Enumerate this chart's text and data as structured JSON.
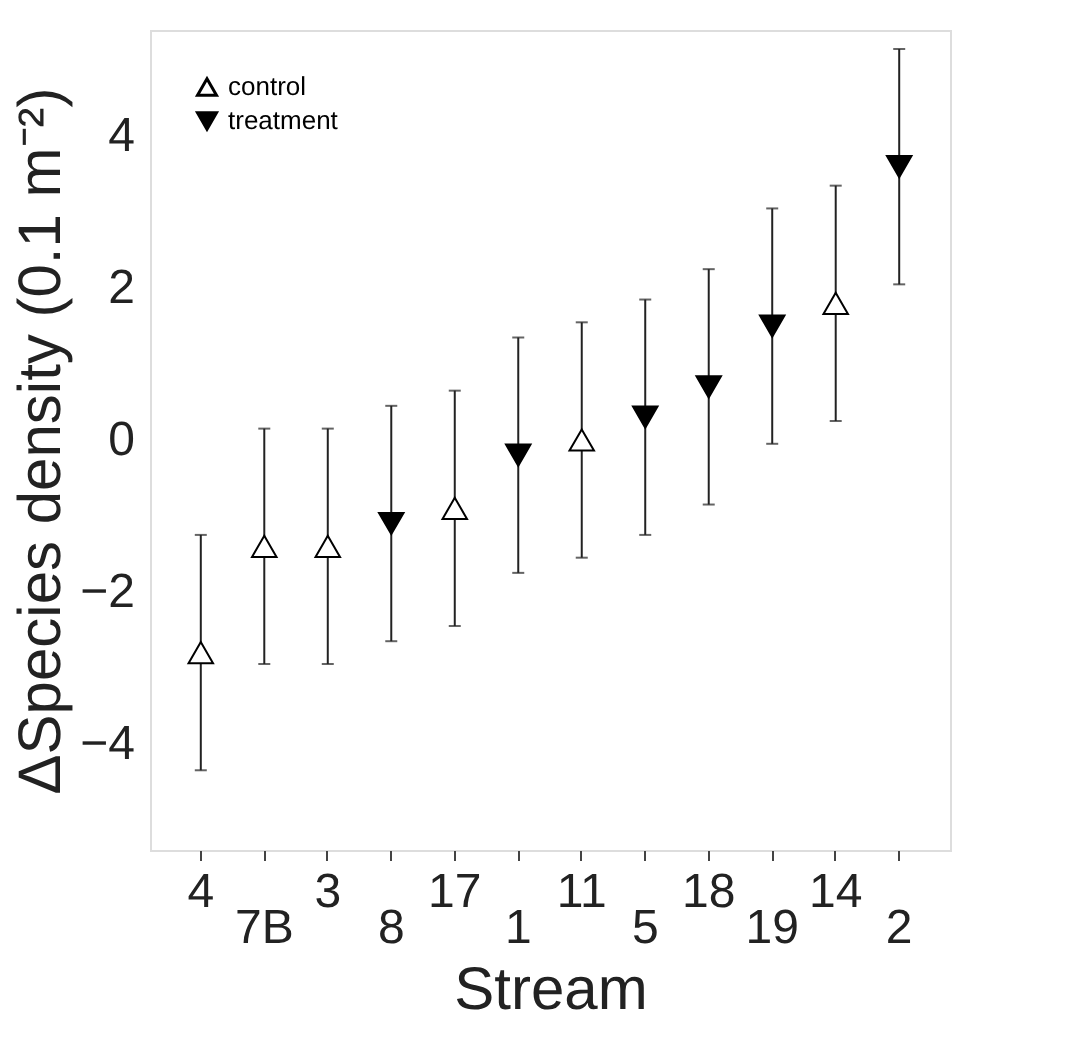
{
  "chart_data": {
    "type": "scatter",
    "xlabel": "Stream",
    "ylabel": "ΔSpecies density (0.1 m⁻²)",
    "categories": [
      "4",
      "7B",
      "3",
      "8",
      "17",
      "1",
      "11",
      "5",
      "18",
      "19",
      "14",
      "2"
    ],
    "series": [
      {
        "name": "control",
        "color": "#ffffff",
        "marker": "triangle",
        "values": [
          -2.8,
          -1.4,
          -1.4,
          null,
          -0.9,
          null,
          0.0,
          null,
          null,
          null,
          1.8,
          null
        ],
        "errors": [
          1.55,
          1.55,
          1.55,
          null,
          1.55,
          null,
          1.55,
          null,
          null,
          null,
          1.55,
          null
        ]
      },
      {
        "name": "treatment",
        "color": "#000000",
        "marker": "triangle-down",
        "values": [
          null,
          null,
          null,
          -1.1,
          null,
          -0.2,
          null,
          0.3,
          0.7,
          1.5,
          null,
          3.6
        ],
        "errors": [
          null,
          null,
          null,
          1.55,
          null,
          1.55,
          null,
          1.55,
          1.55,
          1.55,
          null,
          1.55
        ]
      }
    ],
    "ylim": [
      -5.4,
      5.4
    ],
    "yticks": [
      -4,
      -2,
      0,
      2,
      4
    ],
    "grid": false,
    "legend": "top left"
  }
}
